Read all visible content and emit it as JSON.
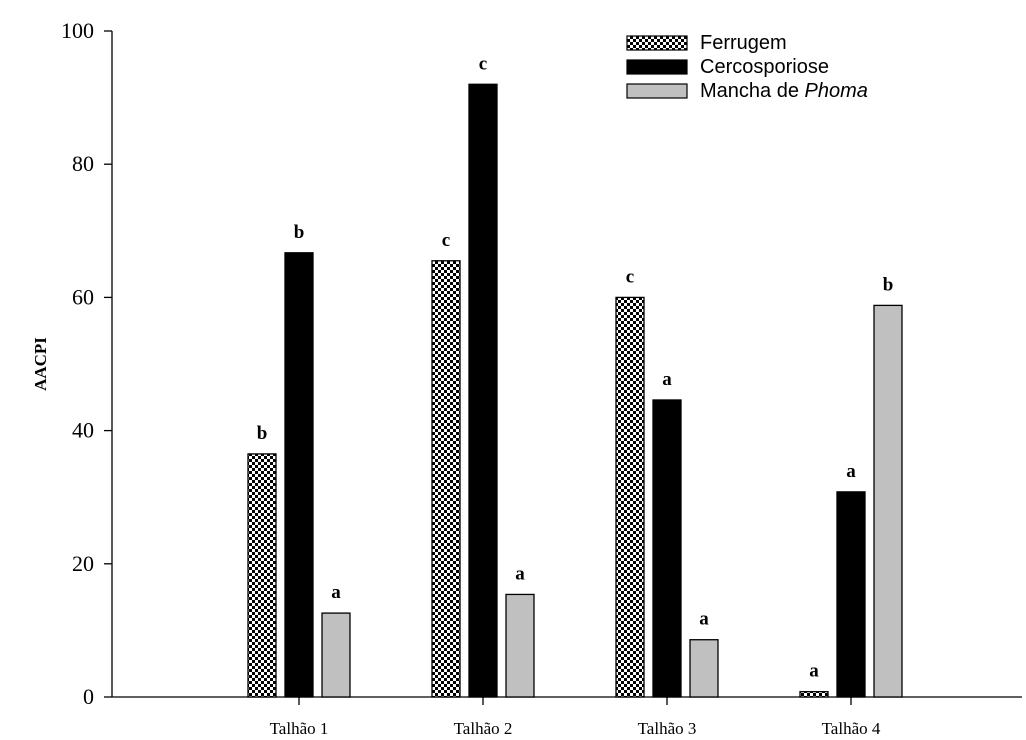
{
  "chart_data": {
    "type": "bar",
    "ylabel": "AACPI",
    "ylim": [
      0,
      100
    ],
    "yticks": [
      "0",
      "20",
      "40",
      "60",
      "80",
      "100"
    ],
    "categories": [
      "Talhão 1",
      "Talhão 2",
      "Talhão 3",
      "Talhão 4"
    ],
    "series": [
      {
        "name": "Ferrugem",
        "values": [
          36.5,
          65.5,
          60,
          0.8
        ],
        "letters": [
          "b",
          "c",
          "c",
          "a"
        ],
        "fill": "checker"
      },
      {
        "name": "Cercosporiose",
        "values": [
          66.7,
          92,
          44.6,
          30.8
        ],
        "letters": [
          "b",
          "c",
          "a",
          "a"
        ],
        "fill": "#000000"
      },
      {
        "name": "Mancha de Phoma",
        "name_prefix": "Mancha de ",
        "name_italic": "Phoma",
        "values": [
          12.6,
          15.4,
          8.6,
          58.8
        ],
        "letters": [
          "a",
          "a",
          "a",
          "b"
        ],
        "fill": "#c0c0c0"
      }
    ],
    "legend_position": "top-right",
    "grid": false
  }
}
